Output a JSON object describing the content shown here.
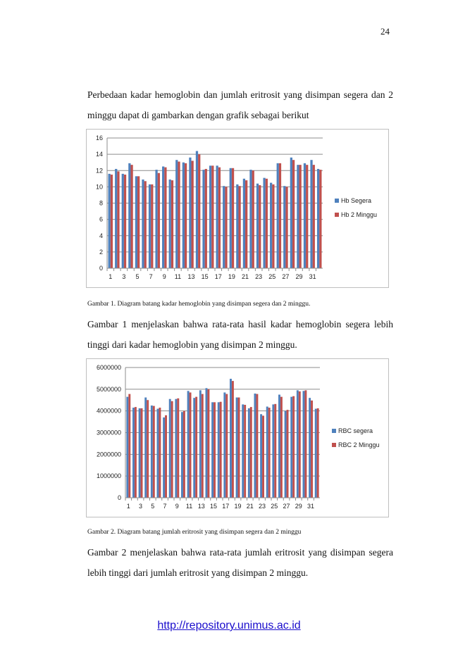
{
  "page": {
    "number": "24",
    "paragraph_1": "Perbedaan kadar hemoglobin dan jumlah eritrosit yang disimpan segera dan 2 minggu dapat di gambarkan dengan grafik sebagai berikut",
    "caption_1": "Gambar 1. Diagram batang kadar hemoglobin yang disimpan segera dan 2 minggu.",
    "paragraph_2": "Gambar 1 menjelaskan bahwa rata-rata hasil kadar hemoglobin segera lebih tinggi dari kadar hemoglobin yang disimpan 2 minggu.",
    "caption_2": "Gambar 2. Diagram batang jumlah eritrosit yang disimpan segera dan 2 minggu",
    "paragraph_3": "Gambar 2 menjelaskan bahwa rata-rata jumlah eritrosit yang disimpan segera lebih tinggi dari jumlah eritrosit yang disimpan 2 minggu.",
    "footer_link": "http://repository.unimus.ac.id"
  },
  "colors": {
    "series_1": "#4f81bd",
    "series_2": "#c0504d",
    "grid": "#8c8c8c",
    "border": "#bfbfbf"
  },
  "chart_data": [
    {
      "type": "bar",
      "x": [
        1,
        2,
        3,
        4,
        5,
        6,
        7,
        8,
        9,
        10,
        11,
        12,
        13,
        14,
        15,
        16,
        17,
        18,
        19,
        20,
        21,
        22,
        23,
        24,
        25,
        26,
        27,
        28,
        29,
        30,
        31,
        32
      ],
      "x_tick_labels": [
        "1",
        "3",
        "5",
        "7",
        "9",
        "11",
        "13",
        "15",
        "17",
        "19",
        "21",
        "23",
        "25",
        "27",
        "29",
        "31"
      ],
      "ylim": [
        0,
        16
      ],
      "y_ticks": [
        0,
        2,
        4,
        6,
        8,
        10,
        12,
        14,
        16
      ],
      "grid": true,
      "legend_position": "right",
      "series": [
        {
          "name": "Hb Segera",
          "values": [
            11.6,
            12.2,
            11.6,
            12.9,
            11.3,
            10.9,
            10.3,
            12.1,
            12.5,
            10.9,
            13.3,
            13.0,
            13.6,
            14.4,
            12.1,
            12.6,
            12.6,
            10.1,
            12.3,
            10.3,
            11.0,
            12.1,
            10.4,
            11.1,
            10.5,
            12.9,
            10.1,
            13.6,
            12.7,
            12.9,
            13.3,
            12.2
          ]
        },
        {
          "name": "Hb 2 Minggu",
          "values": [
            11.5,
            11.9,
            11.5,
            12.7,
            11.3,
            10.7,
            10.3,
            11.7,
            12.4,
            10.8,
            13.1,
            12.9,
            13.2,
            14.0,
            12.2,
            12.6,
            12.4,
            10.0,
            12.3,
            10.1,
            10.8,
            12.0,
            10.2,
            11.0,
            10.3,
            12.9,
            10.0,
            13.3,
            12.7,
            12.7,
            12.7,
            12.1
          ]
        }
      ]
    },
    {
      "type": "bar",
      "x": [
        1,
        2,
        3,
        4,
        5,
        6,
        7,
        8,
        9,
        10,
        11,
        12,
        13,
        14,
        15,
        16,
        17,
        18,
        19,
        20,
        21,
        22,
        23,
        24,
        25,
        26,
        27,
        28,
        29,
        30,
        31,
        32
      ],
      "x_tick_labels": [
        "1",
        "3",
        "5",
        "7",
        "9",
        "11",
        "13",
        "15",
        "17",
        "19",
        "21",
        "23",
        "25",
        "27",
        "29",
        "31"
      ],
      "ylim": [
        0,
        6000000
      ],
      "y_ticks": [
        0,
        1000000,
        2000000,
        3000000,
        4000000,
        5000000,
        6000000
      ],
      "grid": true,
      "legend_position": "right",
      "series": [
        {
          "name": "RBC segera",
          "values": [
            4650000,
            4150000,
            4120000,
            4620000,
            4250000,
            4100000,
            3700000,
            4550000,
            4550000,
            3950000,
            4920000,
            4600000,
            4950000,
            5050000,
            4400000,
            4400000,
            4850000,
            5480000,
            4620000,
            4300000,
            4120000,
            4800000,
            3850000,
            4200000,
            4300000,
            4750000,
            4000000,
            4650000,
            4950000,
            4920000,
            4600000,
            4100000
          ]
        },
        {
          "name": "RBC 2 Minggu",
          "values": [
            4780000,
            4180000,
            4120000,
            4500000,
            4230000,
            4150000,
            3800000,
            4450000,
            4580000,
            4000000,
            4850000,
            4650000,
            4780000,
            5000000,
            4400000,
            4420000,
            4780000,
            5380000,
            4620000,
            4280000,
            4180000,
            4780000,
            3780000,
            4150000,
            4320000,
            4650000,
            4050000,
            4680000,
            4900000,
            4950000,
            4480000,
            4120000
          ]
        }
      ]
    }
  ]
}
